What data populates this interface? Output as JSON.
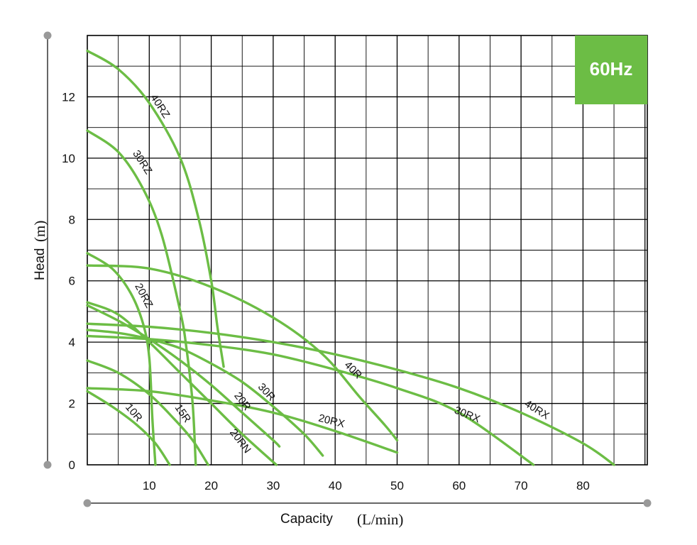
{
  "chart_data": {
    "type": "line",
    "badge": "60Hz",
    "xlabel": "Capacity",
    "xunit": "(L/min)",
    "ylabel": "Head",
    "yunit": "(m)",
    "xlim": [
      0,
      91
    ],
    "ylim": [
      0,
      14
    ],
    "xticks": [
      10,
      20,
      30,
      40,
      50,
      60,
      70,
      80
    ],
    "yticks": [
      0,
      2,
      4,
      6,
      8,
      10,
      12
    ],
    "grid": true,
    "colors": {
      "curve": "#6cbd45",
      "badge": "#6cbd45",
      "grid": "#000000",
      "axis": "#666666"
    },
    "series": [
      {
        "name": "40RZ",
        "points": [
          [
            0,
            13.5
          ],
          [
            5,
            12.9
          ],
          [
            10,
            11.8
          ],
          [
            15,
            10.0
          ],
          [
            18,
            8.0
          ],
          [
            20,
            6.0
          ],
          [
            21,
            4.5
          ],
          [
            22,
            3.2
          ]
        ]
      },
      {
        "name": "30RZ",
        "points": [
          [
            0,
            10.9
          ],
          [
            5,
            10.2
          ],
          [
            9,
            9.0
          ],
          [
            12,
            7.5
          ],
          [
            15,
            5.0
          ],
          [
            16,
            3.8
          ],
          [
            17,
            2.0
          ],
          [
            17.5,
            0
          ]
        ]
      },
      {
        "name": "20RZ",
        "points": [
          [
            0,
            6.9
          ],
          [
            4,
            6.4
          ],
          [
            7,
            5.6
          ],
          [
            9,
            4.6
          ],
          [
            10,
            3.5
          ],
          [
            10.5,
            1.5
          ],
          [
            11,
            0
          ]
        ]
      },
      {
        "name": "10R",
        "points": [
          [
            0,
            2.4
          ],
          [
            4,
            1.9
          ],
          [
            8,
            1.3
          ],
          [
            11,
            0.7
          ],
          [
            13.3,
            0
          ]
        ]
      },
      {
        "name": "15R",
        "points": [
          [
            0,
            3.4
          ],
          [
            5,
            3.0
          ],
          [
            10,
            2.3
          ],
          [
            14,
            1.5
          ],
          [
            17,
            0.8
          ],
          [
            19.5,
            0
          ]
        ]
      },
      {
        "name": "20RN",
        "points": [
          [
            0,
            5.3
          ],
          [
            5,
            4.9
          ],
          [
            10,
            4.0
          ],
          [
            15,
            3.0
          ],
          [
            20,
            2.0
          ],
          [
            25,
            1.0
          ],
          [
            30.5,
            0
          ]
        ]
      },
      {
        "name": "20R",
        "points": [
          [
            0,
            5.2
          ],
          [
            5,
            4.7
          ],
          [
            10,
            4.1
          ],
          [
            15,
            3.4
          ],
          [
            20,
            2.6
          ],
          [
            25,
            1.7
          ],
          [
            30,
            0.8
          ],
          [
            31,
            0.6
          ]
        ]
      },
      {
        "name": "30R",
        "points": [
          [
            0,
            4.4
          ],
          [
            5,
            4.3
          ],
          [
            10,
            4.1
          ],
          [
            15,
            3.8
          ],
          [
            20,
            3.3
          ],
          [
            25,
            2.7
          ],
          [
            30,
            1.9
          ],
          [
            35,
            1.0
          ],
          [
            38,
            0.3
          ]
        ]
      },
      {
        "name": "20RX",
        "points": [
          [
            0,
            2.5
          ],
          [
            10,
            2.4
          ],
          [
            20,
            2.1
          ],
          [
            30,
            1.7
          ],
          [
            40,
            1.1
          ],
          [
            50,
            0.4
          ]
        ]
      },
      {
        "name": "40R",
        "points": [
          [
            0,
            6.5
          ],
          [
            10,
            6.4
          ],
          [
            20,
            5.8
          ],
          [
            30,
            4.8
          ],
          [
            38,
            3.6
          ],
          [
            44,
            2.2
          ],
          [
            48,
            1.3
          ],
          [
            50,
            0.8
          ]
        ]
      },
      {
        "name": "30RX",
        "points": [
          [
            0,
            4.2
          ],
          [
            10,
            4.1
          ],
          [
            20,
            3.9
          ],
          [
            30,
            3.6
          ],
          [
            40,
            3.1
          ],
          [
            50,
            2.5
          ],
          [
            60,
            1.7
          ],
          [
            72,
            0
          ]
        ]
      },
      {
        "name": "40RX",
        "points": [
          [
            0,
            4.6
          ],
          [
            10,
            4.5
          ],
          [
            20,
            4.3
          ],
          [
            30,
            4.0
          ],
          [
            40,
            3.6
          ],
          [
            50,
            3.1
          ],
          [
            60,
            2.5
          ],
          [
            70,
            1.7
          ],
          [
            80,
            0.7
          ],
          [
            85,
            0
          ]
        ]
      }
    ],
    "labels": [
      "40RZ",
      "30RZ",
      "20RZ",
      "10R",
      "15R",
      "20RN",
      "20R",
      "30R",
      "20RX",
      "40R",
      "30RX",
      "40RX"
    ]
  }
}
